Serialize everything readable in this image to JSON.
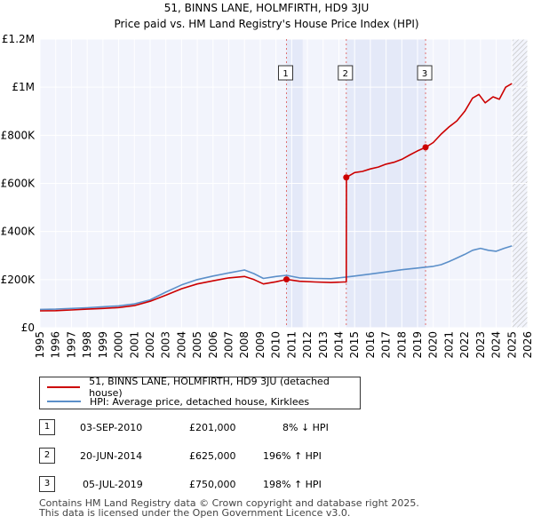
{
  "chart_data": {
    "type": "line",
    "title": "51, BINNS LANE, HOLMFIRTH, HD9 3JU",
    "subtitle": "Price paid vs. HM Land Registry's House Price Index (HPI)",
    "xlabel": "",
    "ylabel": "",
    "xlim": [
      1995,
      2026
    ],
    "ylim": [
      0,
      1200000
    ],
    "y_ticks": [
      {
        "value": 0,
        "label": "£0"
      },
      {
        "value": 200000,
        "label": "£200K"
      },
      {
        "value": 400000,
        "label": "£400K"
      },
      {
        "value": 600000,
        "label": "£600K"
      },
      {
        "value": 800000,
        "label": "£800K"
      },
      {
        "value": 1000000,
        "label": "£1M"
      },
      {
        "value": 1200000,
        "label": "£1.2M"
      }
    ],
    "x_ticks": [
      "1995",
      "1996",
      "1997",
      "1998",
      "1999",
      "2000",
      "2001",
      "2002",
      "2003",
      "2004",
      "2005",
      "2006",
      "2007",
      "2008",
      "2009",
      "2010",
      "2011",
      "2012",
      "2013",
      "2014",
      "2015",
      "2016",
      "2017",
      "2018",
      "2019",
      "2020",
      "2021",
      "2022",
      "2023",
      "2024",
      "2025",
      "2026"
    ],
    "grid": true,
    "hatched_after": 2025.0,
    "sale_bands": [
      [
        2010.67,
        2011.7
      ],
      [
        2014.47,
        2019.51
      ]
    ],
    "series": [
      {
        "name": "51, BINNS LANE, HOLMFIRTH, HD9 3JU (detached house)",
        "color": "#cc0000",
        "points": [
          [
            1995.0,
            70000
          ],
          [
            1996.0,
            71000
          ],
          [
            1997.0,
            74000
          ],
          [
            1998.0,
            77000
          ],
          [
            1999.0,
            80000
          ],
          [
            2000.0,
            84000
          ],
          [
            2001.0,
            92000
          ],
          [
            2002.0,
            110000
          ],
          [
            2003.0,
            135000
          ],
          [
            2004.0,
            162000
          ],
          [
            2005.0,
            182000
          ],
          [
            2006.0,
            195000
          ],
          [
            2007.0,
            207000
          ],
          [
            2008.0,
            213000
          ],
          [
            2008.6,
            200000
          ],
          [
            2009.2,
            182000
          ],
          [
            2010.0,
            191000
          ],
          [
            2010.67,
            201000
          ],
          [
            2011.5,
            193000
          ],
          [
            2012.5,
            190000
          ],
          [
            2013.5,
            188000
          ],
          [
            2014.3,
            190000
          ],
          [
            2014.47,
            190000
          ],
          [
            2014.48,
            625000
          ],
          [
            2015.0,
            645000
          ],
          [
            2015.5,
            650000
          ],
          [
            2016.0,
            660000
          ],
          [
            2016.5,
            668000
          ],
          [
            2017.0,
            680000
          ],
          [
            2017.5,
            688000
          ],
          [
            2018.0,
            700000
          ],
          [
            2018.5,
            718000
          ],
          [
            2019.0,
            735000
          ],
          [
            2019.51,
            750000
          ],
          [
            2020.0,
            770000
          ],
          [
            2020.5,
            805000
          ],
          [
            2021.0,
            835000
          ],
          [
            2021.5,
            860000
          ],
          [
            2022.0,
            900000
          ],
          [
            2022.5,
            955000
          ],
          [
            2022.9,
            970000
          ],
          [
            2023.3,
            935000
          ],
          [
            2023.8,
            960000
          ],
          [
            2024.2,
            950000
          ],
          [
            2024.6,
            1000000
          ],
          [
            2025.0,
            1015000
          ]
        ]
      },
      {
        "name": "HPI: Average price, detached house, Kirklees",
        "color": "#5b8fc9",
        "points": [
          [
            1995.0,
            76000
          ],
          [
            1996.0,
            77000
          ],
          [
            1997.0,
            80000
          ],
          [
            1998.0,
            83000
          ],
          [
            1999.0,
            87000
          ],
          [
            2000.0,
            91000
          ],
          [
            2001.0,
            99000
          ],
          [
            2002.0,
            116000
          ],
          [
            2003.0,
            148000
          ],
          [
            2004.0,
            178000
          ],
          [
            2005.0,
            200000
          ],
          [
            2006.0,
            215000
          ],
          [
            2007.0,
            228000
          ],
          [
            2008.0,
            240000
          ],
          [
            2008.6,
            225000
          ],
          [
            2009.2,
            205000
          ],
          [
            2010.0,
            213000
          ],
          [
            2010.67,
            218000
          ],
          [
            2011.5,
            207000
          ],
          [
            2012.5,
            205000
          ],
          [
            2013.5,
            204000
          ],
          [
            2014.47,
            211000
          ],
          [
            2015.0,
            215000
          ],
          [
            2016.0,
            223000
          ],
          [
            2017.0,
            232000
          ],
          [
            2018.0,
            241000
          ],
          [
            2019.0,
            248000
          ],
          [
            2019.51,
            252000
          ],
          [
            2020.0,
            255000
          ],
          [
            2020.5,
            262000
          ],
          [
            2021.0,
            275000
          ],
          [
            2021.5,
            290000
          ],
          [
            2022.0,
            305000
          ],
          [
            2022.5,
            322000
          ],
          [
            2023.0,
            330000
          ],
          [
            2023.5,
            322000
          ],
          [
            2024.0,
            318000
          ],
          [
            2024.5,
            330000
          ],
          [
            2025.0,
            340000
          ]
        ]
      }
    ],
    "sales": [
      {
        "num": "1",
        "date": "03-SEP-2010",
        "price": "£201,000",
        "hpi": "8% ↓ HPI",
        "x": 2010.67,
        "y": 201000
      },
      {
        "num": "2",
        "date": "20-JUN-2014",
        "price": "£625,000",
        "hpi": "196% ↑ HPI",
        "x": 2014.47,
        "y": 625000
      },
      {
        "num": "3",
        "date": "05-JUL-2019",
        "price": "£750,000",
        "hpi": "198% ↑ HPI",
        "x": 2019.51,
        "y": 750000
      }
    ]
  },
  "legend": {
    "property_label": "51, BINNS LANE, HOLMFIRTH, HD9 3JU (detached house)",
    "hpi_label": "HPI: Average price, detached house, Kirklees"
  },
  "footer": {
    "line1": "Contains HM Land Registry data © Crown copyright and database right 2025.",
    "line2": "This data is licensed under the Open Government Licence v3.0."
  }
}
